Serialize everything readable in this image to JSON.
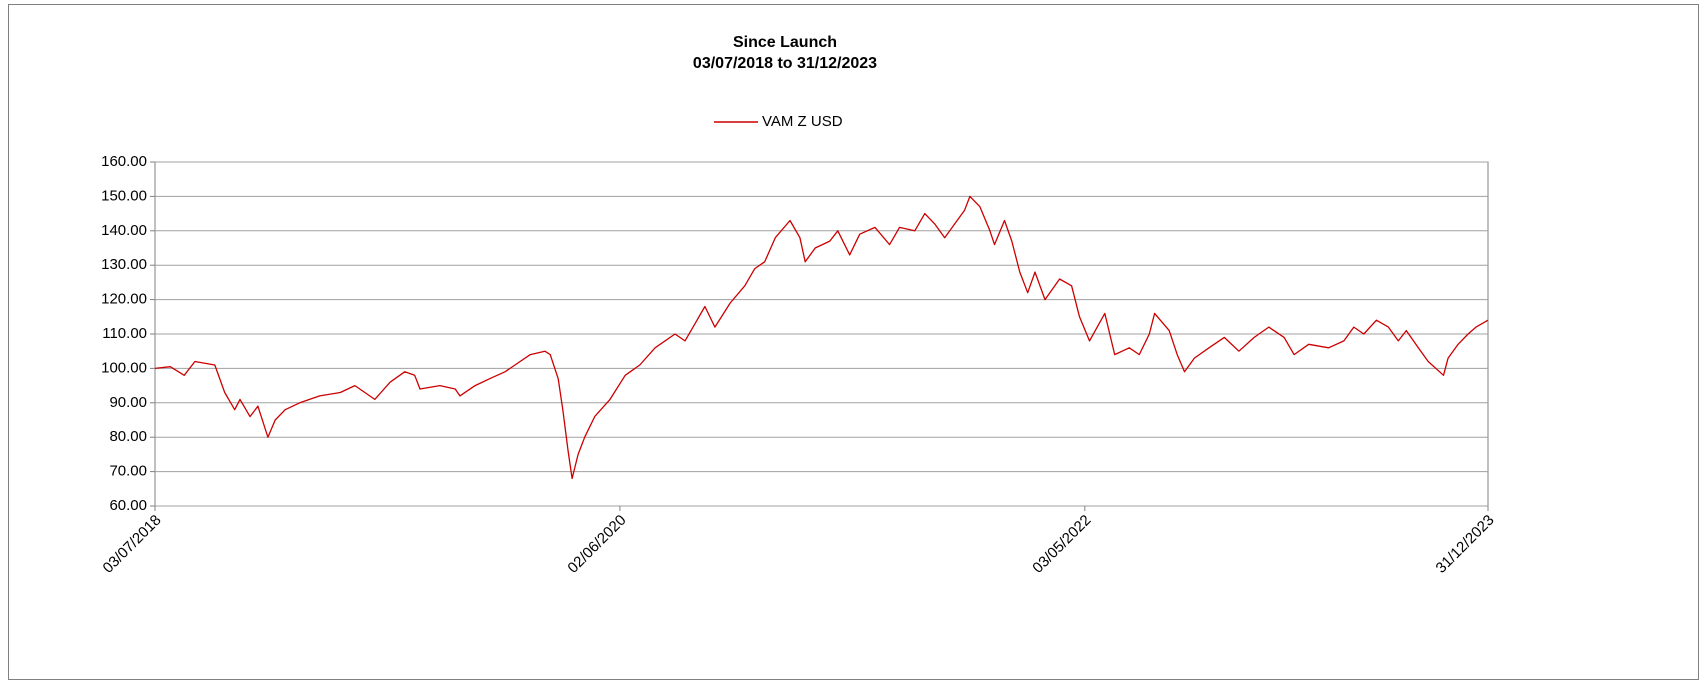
{
  "chart_data": {
    "type": "line",
    "title": "Since Launch",
    "subtitle": "03/07/2018 to 31/12/2023",
    "legend": "top",
    "grid": true,
    "xlim": [
      "03/07/2018",
      "31/12/2023"
    ],
    "xticks": [
      "03/07/2018",
      "02/06/2020",
      "03/05/2022",
      "31/12/2023"
    ],
    "ylim": [
      60,
      160
    ],
    "yticks": [
      {
        "value": 60,
        "label": "60.00"
      },
      {
        "value": 70,
        "label": "70.00"
      },
      {
        "value": 80,
        "label": "80.00"
      },
      {
        "value": 90,
        "label": "90.00"
      },
      {
        "value": 100,
        "label": "100.00"
      },
      {
        "value": 110,
        "label": "110.00"
      },
      {
        "value": 120,
        "label": "120.00"
      },
      {
        "value": 130,
        "label": "130.00"
      },
      {
        "value": 140,
        "label": "140.00"
      },
      {
        "value": 150,
        "label": "150.00"
      },
      {
        "value": 160,
        "label": "160.00"
      }
    ],
    "x": [
      "03/07/2018",
      "26/07/2018",
      "16/08/2018",
      "01/09/2018",
      "01/10/2018",
      "16/10/2018",
      "31/10/2018",
      "08/11/2018",
      "23/11/2018",
      "05/12/2018",
      "20/12/2018",
      "31/12/2018",
      "15/01/2019",
      "06/02/2019",
      "08/03/2019",
      "08/04/2019",
      "30/04/2019",
      "30/05/2019",
      "22/06/2019",
      "14/07/2019",
      "29/07/2019",
      "06/08/2019",
      "05/09/2019",
      "28/09/2019",
      "05/10/2019",
      "28/10/2019",
      "19/11/2019",
      "12/12/2019",
      "27/12/2019",
      "19/01/2020",
      "10/02/2020",
      "18/02/2020",
      "01/03/2020",
      "08/03/2020",
      "16/03/2020",
      "22/03/2020",
      "31/03/2020",
      "10/04/2020",
      "25/04/2020",
      "18/05/2020",
      "10/06/2020",
      "02/07/2020",
      "25/07/2020",
      "24/08/2020",
      "08/09/2020",
      "23/09/2020",
      "08/10/2020",
      "23/10/2020",
      "15/11/2020",
      "07/12/2020",
      "22/12/2020",
      "06/01/2021",
      "22/01/2021",
      "13/02/2021",
      "28/02/2021",
      "08/03/2021",
      "23/03/2021",
      "14/04/2021",
      "26/04/2021",
      "14/05/2021",
      "29/05/2021",
      "21/06/2021",
      "13/07/2021",
      "28/07/2021",
      "20/08/2021",
      "04/09/2021",
      "19/09/2021",
      "04/10/2021",
      "19/10/2021",
      "03/11/2021",
      "11/11/2021",
      "26/11/2021",
      "11/12/2021",
      "18/12/2021",
      "02/01/2022",
      "13/01/2022",
      "25/01/2022",
      "06/02/2022",
      "17/02/2022",
      "04/03/2022",
      "26/03/2022",
      "13/04/2022",
      "25/04/2022",
      "10/05/2022",
      "02/06/2022",
      "17/06/2022",
      "09/07/2022",
      "24/07/2022",
      "08/08/2022",
      "16/08/2022",
      "07/09/2022",
      "19/09/2022",
      "30/09/2022",
      "15/10/2022",
      "06/11/2022",
      "29/11/2022",
      "21/12/2022",
      "13/01/2023",
      "04/02/2023",
      "27/02/2023",
      "14/03/2023",
      "05/04/2023",
      "05/05/2023",
      "28/05/2023",
      "12/06/2023",
      "27/06/2023",
      "16/07/2023",
      "03/08/2023",
      "18/08/2023",
      "30/08/2023",
      "17/09/2023",
      "02/10/2023",
      "25/10/2023",
      "01/11/2023",
      "16/11/2023",
      "01/12/2023",
      "13/12/2023",
      "31/12/2023"
    ],
    "series": [
      {
        "name": "VAM Z USD",
        "color": "#cc0000",
        "values": [
          100,
          100.5,
          98,
          102,
          101,
          93,
          88,
          91,
          86,
          89,
          80,
          85,
          88,
          90,
          92,
          93,
          95,
          91,
          96,
          99,
          98,
          94,
          95,
          94,
          92,
          95,
          97,
          99,
          101,
          104,
          105,
          104,
          97,
          88,
          76,
          68,
          75,
          80,
          86,
          91,
          98,
          101,
          106,
          110,
          108,
          113,
          118,
          112,
          119,
          124,
          129,
          131,
          138,
          143,
          138,
          131,
          135,
          137,
          140,
          133,
          139,
          141,
          136,
          141,
          140,
          145,
          142,
          138,
          142,
          146,
          150,
          147,
          140,
          136,
          143,
          137,
          128,
          122,
          128,
          120,
          126,
          124,
          115,
          108,
          116,
          104,
          106,
          104,
          110,
          116,
          111,
          104,
          99,
          103,
          106,
          109,
          105,
          109,
          112,
          109,
          104,
          107,
          106,
          108,
          112,
          110,
          114,
          112,
          108,
          111,
          106,
          102,
          98,
          103,
          107,
          110,
          112,
          114
        ]
      }
    ]
  }
}
